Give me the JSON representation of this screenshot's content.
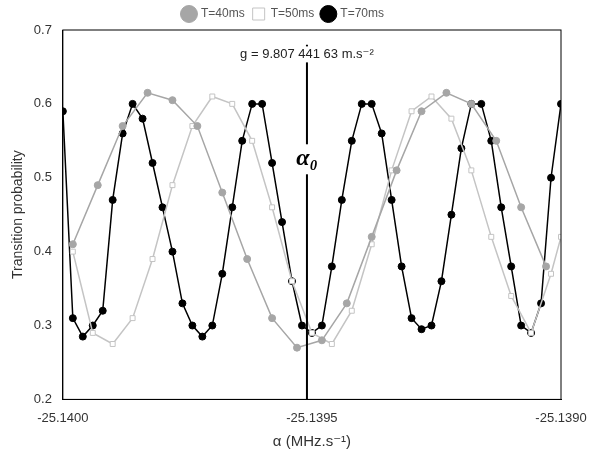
{
  "chart_data": {
    "type": "scatter",
    "x_label": "α (MHz.s⁻¹)",
    "y_label": "Transition probability",
    "xlim": [
      -25.14,
      -25.139
    ],
    "xticks": [
      {
        "value": -25.14,
        "label": "-25.1400"
      },
      -25.1395,
      {
        "value": -25.139,
        "label": "-25.1390"
      }
    ],
    "ylim": [
      0.2,
      0.7
    ],
    "yticks": [
      0.2,
      0.3,
      0.4,
      0.5,
      0.6,
      0.7
    ],
    "grid": false,
    "legend": "top",
    "reference_line": {
      "x": -25.13951,
      "label": "α₀",
      "annotation": "g = 9.807 441 63 m.s⁻²"
    },
    "series": [
      {
        "name": "T=40ms",
        "color": "#a6a6a6",
        "marker": "circle",
        "line_style": "solid",
        "x": [
          -25.13998,
          -25.13993,
          -25.13988,
          -25.13983,
          -25.13978,
          -25.13973,
          -25.13968,
          -25.13963,
          -25.13958,
          -25.13953,
          -25.13948,
          -25.13943,
          -25.13938,
          -25.13933,
          -25.13928,
          -25.13923,
          -25.13918,
          -25.13913,
          -25.13908,
          -25.13903
        ],
        "values": [
          0.41,
          0.49,
          0.57,
          0.615,
          0.605,
          0.57,
          0.48,
          0.39,
          0.31,
          0.27,
          0.28,
          0.33,
          0.42,
          0.51,
          0.59,
          0.615,
          0.6,
          0.55,
          0.46,
          0.38
        ]
      },
      {
        "name": "T=50ms",
        "color": "#c4c4c4",
        "marker": "open_square",
        "line_style": "solid",
        "x": [
          -25.13998,
          -25.13994,
          -25.1399,
          -25.13986,
          -25.13982,
          -25.13978,
          -25.13974,
          -25.1397,
          -25.13966,
          -25.13962,
          -25.13958,
          -25.13954,
          -25.1395,
          -25.13946,
          -25.13942,
          -25.13938,
          -25.13934,
          -25.1393,
          -25.13926,
          -25.13922,
          -25.13918,
          -25.13914,
          -25.1391,
          -25.13906,
          -25.13902,
          -25.139
        ],
        "values": [
          0.4,
          0.29,
          0.275,
          0.31,
          0.39,
          0.49,
          0.57,
          0.61,
          0.6,
          0.55,
          0.46,
          0.36,
          0.29,
          0.275,
          0.32,
          0.41,
          0.51,
          0.59,
          0.61,
          0.58,
          0.51,
          0.42,
          0.34,
          0.29,
          0.37,
          0.42
        ]
      },
      {
        "name": "T=70ms",
        "color": "#000000",
        "marker": "circle",
        "line_style": "solid",
        "x": [
          -25.14,
          -25.13998,
          -25.13996,
          -25.13994,
          -25.13992,
          -25.1399,
          -25.13988,
          -25.13986,
          -25.13984,
          -25.13982,
          -25.1398,
          -25.13978,
          -25.13976,
          -25.13974,
          -25.13972,
          -25.1397,
          -25.13968,
          -25.13966,
          -25.13964,
          -25.13962,
          -25.1396,
          -25.13958,
          -25.13956,
          -25.13954,
          -25.13952,
          -25.1395,
          -25.13948,
          -25.13946,
          -25.13944,
          -25.13942,
          -25.1394,
          -25.13938,
          -25.13936,
          -25.13934,
          -25.13932,
          -25.1393,
          -25.13928,
          -25.13926,
          -25.13924,
          -25.13922,
          -25.1392,
          -25.13918,
          -25.13916,
          -25.13914,
          -25.13912,
          -25.1391,
          -25.13908,
          -25.13906,
          -25.13904,
          -25.13902,
          -25.139
        ],
        "values": [
          0.59,
          0.31,
          0.285,
          0.3,
          0.32,
          0.47,
          0.56,
          0.6,
          0.58,
          0.52,
          0.46,
          0.4,
          0.33,
          0.3,
          0.285,
          0.3,
          0.37,
          0.46,
          0.55,
          0.6,
          0.6,
          0.52,
          0.44,
          0.36,
          0.3,
          0.29,
          0.3,
          0.38,
          0.47,
          0.55,
          0.6,
          0.6,
          0.56,
          0.47,
          0.38,
          0.31,
          0.295,
          0.3,
          0.36,
          0.45,
          0.54,
          0.6,
          0.6,
          0.55,
          0.46,
          0.38,
          0.3,
          0.29,
          0.33,
          0.5,
          0.6
        ]
      }
    ]
  }
}
